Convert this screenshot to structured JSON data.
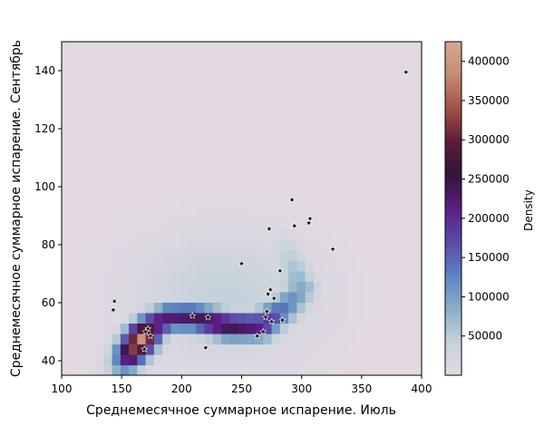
{
  "chart_data": {
    "type": "heatmap",
    "title": "",
    "xlabel": "Среднемесячное суммарное испарение. Июль",
    "ylabel": "Среднемесячное суммарное испарение. Сентябрь",
    "xlim": [
      100,
      400
    ],
    "ylim": [
      35,
      150
    ],
    "x_ticks": [
      "100",
      "150",
      "200",
      "250",
      "300",
      "350",
      "400"
    ],
    "y_ticks": [
      "40",
      "60",
      "80",
      "100",
      "120",
      "140"
    ],
    "colorbar": {
      "label": "Density",
      "range": [
        0,
        425000
      ],
      "ticks": [
        "50000",
        "100000",
        "150000",
        "200000",
        "250000",
        "300000",
        "350000",
        "400000"
      ],
      "colormap": [
        "#e3d9e3",
        "#c4d2da",
        "#8aafc8",
        "#5a84c0",
        "#5b4aa8",
        "#5c1d84",
        "#311538",
        "#5e1a3a",
        "#a15248",
        "#c48a74",
        "#d8a890"
      ]
    },
    "density_ridge": [
      {
        "x": 148,
        "y": 36,
        "value": 12000
      },
      {
        "x": 158,
        "y": 43,
        "value": 300000
      },
      {
        "x": 167,
        "y": 48,
        "value": 400000
      },
      {
        "x": 175,
        "y": 52,
        "value": 240000
      },
      {
        "x": 190,
        "y": 55,
        "value": 220000
      },
      {
        "x": 210,
        "y": 55,
        "value": 235000
      },
      {
        "x": 240,
        "y": 52,
        "value": 250000
      },
      {
        "x": 265,
        "y": 52,
        "value": 220000
      },
      {
        "x": 285,
        "y": 58,
        "value": 140000
      },
      {
        "x": 300,
        "y": 65,
        "value": 90000
      },
      {
        "x": 285,
        "y": 80,
        "value": 30000
      }
    ],
    "points": [
      {
        "x": 387,
        "y": 139.5
      },
      {
        "x": 292,
        "y": 95.5
      },
      {
        "x": 307,
        "y": 89
      },
      {
        "x": 306,
        "y": 87.5
      },
      {
        "x": 294,
        "y": 86.5
      },
      {
        "x": 273,
        "y": 85.5
      },
      {
        "x": 326,
        "y": 78.5
      },
      {
        "x": 250,
        "y": 73.5
      },
      {
        "x": 282,
        "y": 71
      },
      {
        "x": 274,
        "y": 64.5
      },
      {
        "x": 272,
        "y": 63
      },
      {
        "x": 277,
        "y": 61.5
      },
      {
        "x": 144,
        "y": 60.5
      },
      {
        "x": 143,
        "y": 57.5
      },
      {
        "x": 271,
        "y": 57
      },
      {
        "x": 270,
        "y": 55
      },
      {
        "x": 209,
        "y": 55.5
      },
      {
        "x": 222,
        "y": 55
      },
      {
        "x": 284,
        "y": 54
      },
      {
        "x": 275,
        "y": 53.5
      },
      {
        "x": 172,
        "y": 51
      },
      {
        "x": 170,
        "y": 50
      },
      {
        "x": 174,
        "y": 48.5
      },
      {
        "x": 268,
        "y": 50
      },
      {
        "x": 263,
        "y": 48.5
      },
      {
        "x": 220,
        "y": 44.5
      },
      {
        "x": 169,
        "y": 44
      }
    ]
  }
}
